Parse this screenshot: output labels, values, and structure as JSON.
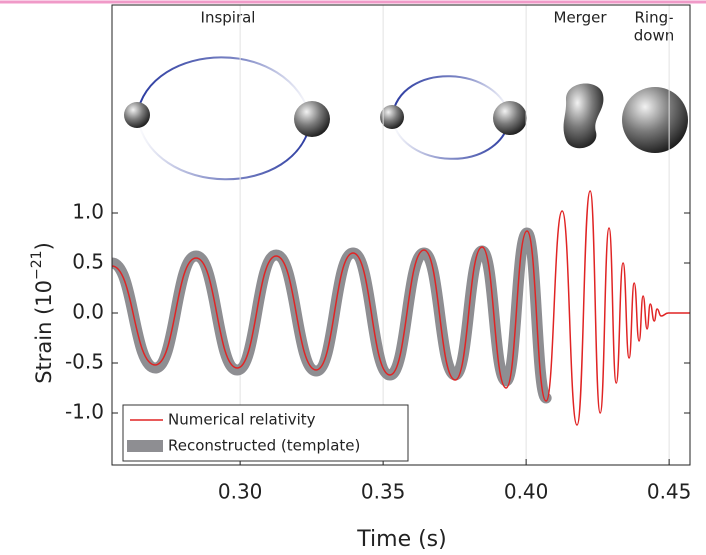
{
  "chart_data": {
    "type": "line",
    "xlabel": "Time (s)",
    "ylabel_parts": [
      "Strain (10",
      "−21",
      ")"
    ],
    "annotations": [
      "Inspiral",
      "Merger",
      "Ring-",
      "down"
    ],
    "x": [
      0.2552,
      0.2703,
      0.2846,
      0.299,
      0.3126,
      0.3266,
      0.3395,
      0.3524,
      0.3643,
      0.3752,
      0.3846,
      0.393,
      0.4003,
      0.407,
      0.4126,
      0.4178,
      0.4224,
      0.4259,
      0.429,
      0.4315,
      0.4339,
      0.436,
      0.4378,
      0.4395,
      0.4409,
      0.4423,
      0.4434,
      0.4448,
      0.4458,
      0.4472,
      0.4497,
      0.4573
    ],
    "series": [
      {
        "name": "Reconstructed (template)",
        "color": "#8e8e92",
        "values": [
          0.5,
          -0.55,
          0.57,
          -0.57,
          0.58,
          -0.58,
          0.6,
          -0.62,
          0.6,
          -0.62,
          0.62,
          -0.68,
          0.8,
          -0.85,
          null,
          null,
          null,
          null,
          null,
          null,
          null,
          null,
          null,
          null,
          null,
          null,
          null,
          null,
          null,
          null,
          null,
          null
        ]
      },
      {
        "name": "Numerical relativity",
        "color": "#e02424",
        "values": [
          0.47,
          -0.52,
          0.55,
          -0.55,
          0.57,
          -0.57,
          0.6,
          -0.62,
          0.63,
          -0.67,
          0.66,
          -0.75,
          0.82,
          -0.88,
          1.02,
          -1.12,
          1.22,
          -1.0,
          0.85,
          -0.7,
          0.5,
          -0.45,
          0.3,
          -0.28,
          0.17,
          -0.16,
          0.09,
          -0.08,
          0.04,
          -0.03,
          0,
          0
        ]
      }
    ],
    "xlim": [
      0.2552,
      0.4573
    ],
    "ylim": [
      -1.52,
      3.08
    ],
    "xticks": [
      {
        "value": 0.3,
        "label": "0.30"
      },
      0.35,
      {
        "value": 0.4,
        "label": "0.40"
      },
      0.45
    ],
    "yticks": [
      {
        "value": 1.0,
        "label": "1.0"
      },
      0.5,
      {
        "value": 0.0,
        "label": "0.0"
      },
      -0.5,
      {
        "value": -1.0,
        "label": "-1.0"
      }
    ],
    "grid": "x",
    "legend": "lower left"
  }
}
